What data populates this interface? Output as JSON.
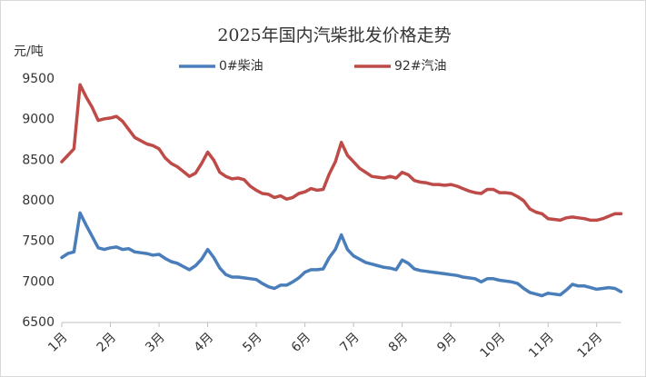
{
  "chart_data": {
    "type": "line",
    "title": "2025年国内汽柴批发价格走势",
    "y_label": "元/吨",
    "categories": [
      "1月",
      null,
      null,
      null,
      null,
      null,
      null,
      null,
      "2月",
      null,
      null,
      null,
      null,
      null,
      null,
      null,
      "3月",
      null,
      null,
      null,
      null,
      null,
      null,
      null,
      "4月",
      null,
      null,
      null,
      null,
      null,
      null,
      null,
      "5月",
      null,
      null,
      null,
      null,
      null,
      null,
      null,
      "6月",
      null,
      null,
      null,
      null,
      null,
      null,
      null,
      "7月",
      null,
      null,
      null,
      null,
      null,
      null,
      null,
      "8月",
      null,
      null,
      null,
      null,
      null,
      null,
      null,
      "9月",
      null,
      null,
      null,
      null,
      null,
      null,
      null,
      "10月",
      null,
      null,
      null,
      null,
      null,
      null,
      null,
      "11月",
      null,
      null,
      null,
      null,
      null,
      null,
      null,
      "12月",
      null,
      null,
      null,
      null
    ],
    "series": [
      {
        "name": "0#柴油",
        "color": "#4a7ebb",
        "values": [
          7300,
          7350,
          7370,
          7850,
          7700,
          7560,
          7420,
          7400,
          7420,
          7430,
          7400,
          7410,
          7370,
          7360,
          7350,
          7330,
          7340,
          7290,
          7250,
          7230,
          7190,
          7150,
          7200,
          7280,
          7400,
          7300,
          7170,
          7090,
          7060,
          7060,
          7050,
          7040,
          7030,
          6980,
          6940,
          6920,
          6960,
          6960,
          7000,
          7050,
          7120,
          7150,
          7150,
          7160,
          7300,
          7400,
          7580,
          7400,
          7320,
          7280,
          7240,
          7220,
          7200,
          7180,
          7170,
          7150,
          7270,
          7230,
          7160,
          7140,
          7130,
          7120,
          7110,
          7100,
          7090,
          7080,
          7060,
          7050,
          7040,
          7000,
          7040,
          7040,
          7020,
          7010,
          7000,
          6980,
          6920,
          6870,
          6850,
          6830,
          6860,
          6850,
          6840,
          6900,
          6970,
          6950,
          6950,
          6930,
          6910,
          6920,
          6930,
          6920,
          6880
        ]
      },
      {
        "name": "92#汽油",
        "color": "#be4b48",
        "values": [
          8480,
          8560,
          8640,
          9430,
          9280,
          9150,
          8990,
          9010,
          9020,
          9040,
          8980,
          8880,
          8780,
          8740,
          8700,
          8680,
          8640,
          8530,
          8460,
          8420,
          8360,
          8300,
          8340,
          8460,
          8600,
          8500,
          8350,
          8300,
          8270,
          8280,
          8260,
          8180,
          8130,
          8090,
          8080,
          8040,
          8060,
          8020,
          8040,
          8090,
          8110,
          8150,
          8130,
          8140,
          8330,
          8480,
          8720,
          8560,
          8480,
          8400,
          8350,
          8300,
          8290,
          8280,
          8300,
          8280,
          8350,
          8320,
          8250,
          8230,
          8220,
          8200,
          8200,
          8190,
          8200,
          8180,
          8150,
          8120,
          8100,
          8090,
          8140,
          8140,
          8100,
          8100,
          8090,
          8050,
          8000,
          7900,
          7860,
          7840,
          7780,
          7770,
          7760,
          7790,
          7800,
          7790,
          7780,
          7760,
          7760,
          7780,
          7810,
          7840,
          7840
        ]
      }
    ],
    "ylim": [
      6500,
      9500
    ],
    "yticks": [
      6500,
      7000,
      7500,
      8000,
      8500,
      9000,
      9500
    ],
    "grid": false,
    "legend": "top"
  }
}
